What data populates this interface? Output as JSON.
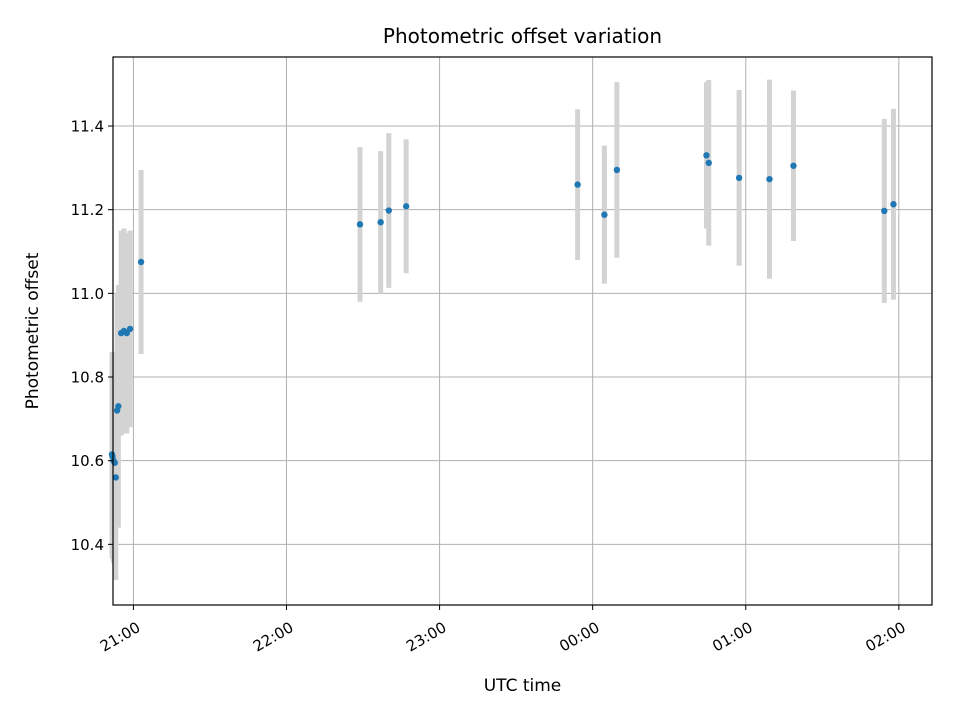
{
  "chart_data": {
    "type": "scatter",
    "title": "Photometric offset variation",
    "xlabel": "UTC time",
    "ylabel": "Photometric offset",
    "grid": true,
    "legend": "none",
    "x_axis": "time",
    "x_ticks": [
      "21:00",
      "22:00",
      "23:00",
      "00:00",
      "01:00",
      "02:00"
    ],
    "xlim": [
      "20:52",
      "02:13"
    ],
    "ylim": [
      10.255,
      11.565
    ],
    "y_ticks": [
      10.4,
      10.6,
      10.8,
      11.0,
      11.2,
      11.4
    ],
    "marker_color": "#1f77b4",
    "errorbar_color": "#d3d3d3",
    "points": [
      {
        "time": "20:51.6",
        "y": 10.615,
        "yerr": 0.245
      },
      {
        "time": "20:51.8",
        "y": 10.61,
        "yerr": 0.245
      },
      {
        "time": "20:52.2",
        "y": 10.6,
        "yerr": 0.245
      },
      {
        "time": "20:52.7",
        "y": 10.595,
        "yerr": 0.245
      },
      {
        "time": "20:53.1",
        "y": 10.56,
        "yerr": 0.245
      },
      {
        "time": "20:53.6",
        "y": 10.72,
        "yerr": 0.28
      },
      {
        "time": "20:54.1",
        "y": 10.73,
        "yerr": 0.29
      },
      {
        "time": "20:55.2",
        "y": 10.905,
        "yerr": 0.245
      },
      {
        "time": "20:56.3",
        "y": 10.91,
        "yerr": 0.245
      },
      {
        "time": "20:57.4",
        "y": 10.905,
        "yerr": 0.24
      },
      {
        "time": "20:58.7",
        "y": 10.915,
        "yerr": 0.235
      },
      {
        "time": "21:03.0",
        "y": 11.075,
        "yerr": 0.22
      },
      {
        "time": "22:28.8",
        "y": 11.165,
        "yerr": 0.185
      },
      {
        "time": "22:36.9",
        "y": 11.17,
        "yerr": 0.17
      },
      {
        "time": "22:40.1",
        "y": 11.198,
        "yerr": 0.185
      },
      {
        "time": "22:46.9",
        "y": 11.208,
        "yerr": 0.16
      },
      {
        "time": "23:54.1",
        "y": 11.26,
        "yerr": 0.18
      },
      {
        "time": "00:04.6",
        "y": 11.188,
        "yerr": 0.165
      },
      {
        "time": "00:09.5",
        "y": 11.295,
        "yerr": 0.21
      },
      {
        "time": "00:44.6",
        "y": 11.33,
        "yerr": 0.175
      },
      {
        "time": "00:45.5",
        "y": 11.312,
        "yerr": 0.198
      },
      {
        "time": "00:57.4",
        "y": 11.276,
        "yerr": 0.21
      },
      {
        "time": "01:09.3",
        "y": 11.273,
        "yerr": 0.238
      },
      {
        "time": "01:18.7",
        "y": 11.305,
        "yerr": 0.18
      },
      {
        "time": "01:54.3",
        "y": 11.197,
        "yerr": 0.22
      },
      {
        "time": "01:57.9",
        "y": 11.213,
        "yerr": 0.228
      }
    ]
  }
}
